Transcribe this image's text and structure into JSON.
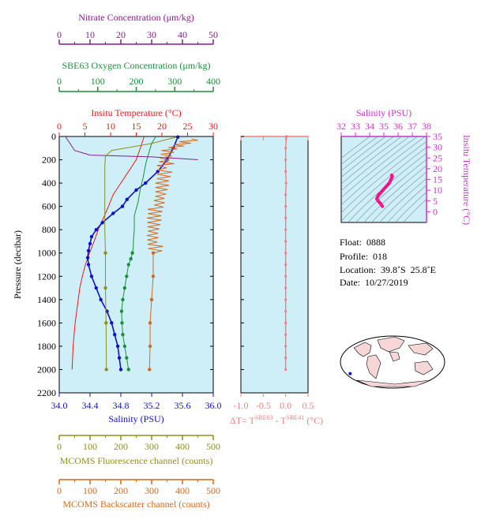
{
  "colors": {
    "nitrate": "#8b1a8b",
    "oxygen": "#1a8f3a",
    "temperature": "#e8191b",
    "salinity": "#1010c8",
    "fluorescence": "#8f8f1a",
    "backscatter": "#d2691e",
    "delta": "#f08080",
    "ts_salinity": "#cc33cc",
    "panel_bg": "#cfeff8"
  },
  "chart_data": [
    {
      "type": "line",
      "name": "profile",
      "ylabel": "Pressure (decibar)",
      "ylim": [
        2200,
        0
      ],
      "yticks": [
        0,
        200,
        400,
        600,
        800,
        1000,
        1200,
        1400,
        1600,
        1800,
        2000,
        2200
      ],
      "axes": {
        "nitrate": {
          "label": "Nitrate Concentration (μm/kg)",
          "range": [
            0,
            50
          ],
          "ticks": [
            0,
            10,
            20,
            30,
            40,
            50
          ]
        },
        "oxygen": {
          "label": "SBE63 Oxygen Concentration (μm/kg)",
          "range": [
            0,
            400
          ],
          "ticks": [
            0,
            100,
            200,
            300,
            400
          ]
        },
        "temperature": {
          "label": "Insitu Temperature (°C)",
          "range": [
            0,
            30
          ],
          "ticks": [
            0,
            5,
            10,
            15,
            20,
            25,
            30
          ]
        },
        "salinity": {
          "label": "Salinity (PSU)",
          "range": [
            34.0,
            36.0
          ],
          "ticks": [
            "34.0",
            "34.4",
            "34.8",
            "35.2",
            "35.6",
            "36.0"
          ]
        },
        "fluorescence": {
          "label": "MCOMS Fluorescence channel (counts)",
          "range": [
            0,
            500
          ],
          "ticks": [
            0,
            100,
            200,
            300,
            400,
            500
          ]
        },
        "backscatter": {
          "label": "MCOMS Backscatter channel (counts)",
          "range": [
            0,
            500
          ],
          "ticks": [
            0,
            100,
            200,
            300,
            400,
            500
          ]
        }
      },
      "series": [
        {
          "name": "Insitu Temperature (°C)",
          "axis": "temperature",
          "points": [
            [
              16.5,
              5
            ],
            [
              15.8,
              100
            ],
            [
              15.0,
              200
            ],
            [
              13.5,
              300
            ],
            [
              12.0,
              400
            ],
            [
              10.5,
              500
            ],
            [
              9.6,
              600
            ],
            [
              8.6,
              700
            ],
            [
              7.6,
              800
            ],
            [
              6.8,
              900
            ],
            [
              5.9,
              1000
            ],
            [
              5.1,
              1100
            ],
            [
              4.5,
              1200
            ],
            [
              4.0,
              1300
            ],
            [
              3.7,
              1400
            ],
            [
              3.4,
              1500
            ],
            [
              3.1,
              1600
            ],
            [
              2.9,
              1700
            ],
            [
              2.7,
              1800
            ],
            [
              2.6,
              1900
            ],
            [
              2.5,
              2000
            ]
          ]
        },
        {
          "name": "Salinity (PSU)",
          "axis": "salinity",
          "markers": true,
          "points": [
            [
              35.54,
              5
            ],
            [
              35.48,
              100
            ],
            [
              35.4,
              200
            ],
            [
              35.28,
              300
            ],
            [
              35.12,
              400
            ],
            [
              35.0,
              460
            ],
            [
              34.88,
              540
            ],
            [
              34.82,
              600
            ],
            [
              34.7,
              660
            ],
            [
              34.56,
              740
            ],
            [
              34.48,
              800
            ],
            [
              34.42,
              860
            ],
            [
              34.4,
              920
            ],
            [
              34.38,
              980
            ],
            [
              34.37,
              1040
            ],
            [
              34.38,
              1100
            ],
            [
              34.42,
              1200
            ],
            [
              34.48,
              1300
            ],
            [
              34.54,
              1400
            ],
            [
              34.62,
              1500
            ],
            [
              34.68,
              1600
            ],
            [
              34.72,
              1700
            ],
            [
              34.76,
              1800
            ],
            [
              34.78,
              1900
            ],
            [
              34.8,
              2000
            ]
          ]
        },
        {
          "name": "SBE63 Oxygen Concentration (μm/kg)",
          "axis": "oxygen",
          "markers_below": 1000,
          "points": [
            [
              250,
              5
            ],
            [
              240,
              60
            ],
            [
              232,
              150
            ],
            [
              225,
              230
            ],
            [
              218,
              350
            ],
            [
              210,
              460
            ],
            [
              205,
              560
            ],
            [
              200,
              620
            ],
            [
              195,
              680
            ],
            [
              195,
              740
            ],
            [
              195,
              800
            ],
            [
              193,
              880
            ],
            [
              192,
              960
            ],
            [
              190,
              1000
            ],
            [
              186,
              1050
            ],
            [
              180,
              1100
            ],
            [
              175,
              1200
            ],
            [
              170,
              1300
            ],
            [
              165,
              1400
            ],
            [
              162,
              1500
            ],
            [
              163,
              1600
            ],
            [
              165,
              1700
            ],
            [
              170,
              1800
            ],
            [
              175,
              1900
            ],
            [
              180,
              2000
            ]
          ]
        },
        {
          "name": "Nitrate Concentration (μm/kg)",
          "axis": "nitrate",
          "points": [
            [
              2,
              0
            ],
            [
              5,
              120
            ],
            [
              10,
              160
            ],
            [
              30,
              175
            ],
            [
              40,
              190
            ],
            [
              45,
              200
            ]
          ]
        },
        {
          "name": "MCOMS Fluorescence channel (counts)",
          "axis": "fluorescence",
          "markers_below": 1000,
          "points": [
            [
              380,
              5
            ],
            [
              300,
              60
            ],
            [
              170,
              120
            ],
            [
              150,
              170
            ],
            [
              148,
              250
            ],
            [
              148,
              500
            ],
            [
              148,
              800
            ],
            [
              150,
              1000
            ],
            [
              150,
              1300
            ],
            [
              152,
              1600
            ],
            [
              153,
              2000
            ]
          ]
        },
        {
          "name": "MCOMS Backscatter channel (counts)",
          "axis": "backscatter",
          "markers_below": 1000,
          "noisy_above": 1000,
          "points": [
            [
              440,
              20
            ],
            [
              360,
              120
            ],
            [
              340,
              250
            ],
            [
              330,
              400
            ],
            [
              320,
              550
            ],
            [
              315,
              700
            ],
            [
              310,
              850
            ],
            [
              305,
              1000
            ],
            [
              305,
              1200
            ],
            [
              300,
              1400
            ],
            [
              295,
              1600
            ],
            [
              295,
              1800
            ],
            [
              293,
              2000
            ]
          ]
        }
      ]
    },
    {
      "type": "line",
      "name": "delta-temperature",
      "xlabel": "ΔT= T^SBE63 - T^SBE41 (°C)",
      "xlabel_parts": [
        "ΔT= T",
        "SBE63",
        " - T",
        "SBE41",
        " (°C)"
      ],
      "xlim": [
        -1.0,
        0.5
      ],
      "xticks": [
        "-1.0",
        "-0.5",
        "0.0",
        "0.5"
      ],
      "x": [
        0.02,
        0.0,
        0.0,
        0.0,
        0.01,
        0.0,
        0.0,
        0.0,
        0.0,
        0.0,
        0.0,
        0.0,
        0.0,
        0.0,
        0.0,
        0.0,
        0.0,
        0.0,
        0.0,
        0.0,
        0.0
      ],
      "y": [
        0,
        100,
        200,
        300,
        400,
        500,
        600,
        700,
        800,
        900,
        1000,
        1100,
        1200,
        1300,
        1400,
        1500,
        1600,
        1700,
        1800,
        1900,
        2000
      ]
    },
    {
      "type": "scatter",
      "name": "t-s-diagram",
      "xlabel": "Salinity (PSU)",
      "ylabel": "Insitu Temperature (°C)",
      "xlim": [
        32,
        38
      ],
      "ylim": [
        -5,
        35
      ],
      "xticks": [
        32,
        33,
        34,
        35,
        36,
        37,
        38
      ],
      "yticks": [
        0,
        5,
        10,
        15,
        20,
        25,
        30,
        35
      ],
      "points": [
        [
          34.9,
          2.5
        ],
        [
          34.8,
          3.5
        ],
        [
          34.6,
          5
        ],
        [
          34.5,
          6
        ],
        [
          34.6,
          7.5
        ],
        [
          34.8,
          9
        ],
        [
          35.0,
          10.5
        ],
        [
          35.2,
          12
        ],
        [
          35.4,
          13.5
        ],
        [
          35.5,
          15
        ],
        [
          35.6,
          16.5
        ],
        [
          35.55,
          17
        ]
      ]
    }
  ],
  "info": {
    "float": "Float:  0888",
    "profile": "Profile:  018",
    "location": "Location:  39.8˚S  25.8˚E",
    "date": "Date:  10/27/2019"
  },
  "map": {
    "marker_lat": -39.8,
    "marker_lon": 25.8
  }
}
